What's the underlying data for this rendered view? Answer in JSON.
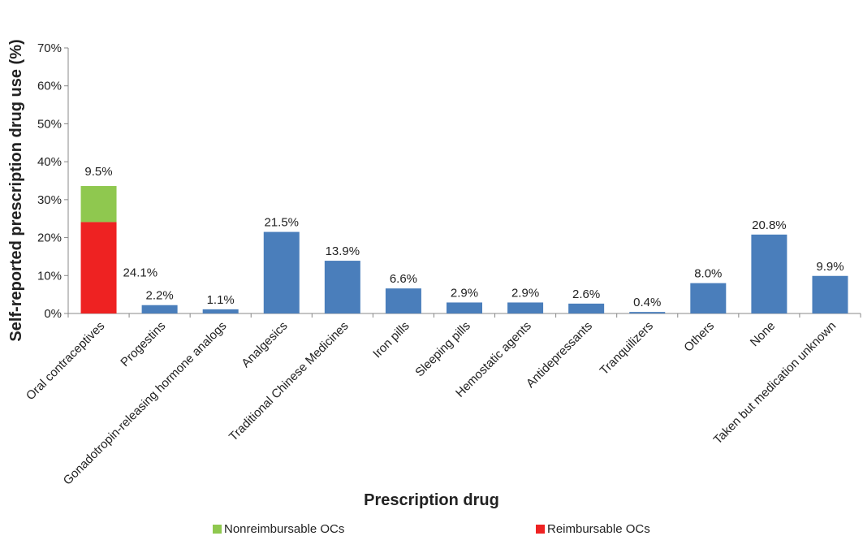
{
  "chart_data": {
    "type": "bar",
    "stacked": true,
    "xlabel": "Prescription drug",
    "ylabel": "Self-reported prescription drug use (%)",
    "ylim": [
      0,
      70
    ],
    "yticks": [
      "0%",
      "10%",
      "20%",
      "30%",
      "40%",
      "50%",
      "60%",
      "70%"
    ],
    "grid": false,
    "legend_position": "bottom",
    "categories": [
      "Oral contraceptives",
      "Progestins",
      "Gonadotropin-releasing hormone analogs",
      "Analgesics",
      "Traditional Chinese Medicines",
      "Iron pills",
      "Sleeping pills",
      "Hemostatic agents",
      "Antidepressants",
      "Tranquilizers",
      "Others",
      "None",
      "Taken but medication unknown"
    ],
    "series": [
      {
        "name": "",
        "color": "#4a7ebb",
        "values": [
          null,
          2.2,
          1.1,
          21.5,
          13.9,
          6.6,
          2.9,
          2.9,
          2.6,
          0.4,
          8.0,
          20.8,
          9.9
        ],
        "labels": [
          "",
          "2.2%",
          "1.1%",
          "21.5%",
          "13.9%",
          "6.6%",
          "2.9%",
          "2.9%",
          "2.6%",
          "0.4%",
          "8.0%",
          "20.8%",
          "9.9%"
        ]
      },
      {
        "name": "Reimbursable OCs",
        "color": "#ee2222",
        "values": [
          24.1,
          null,
          null,
          null,
          null,
          null,
          null,
          null,
          null,
          null,
          null,
          null,
          null
        ],
        "labels": [
          "24.1%",
          "",
          "",
          "",
          "",
          "",
          "",
          "",
          "",
          "",
          "",
          "",
          ""
        ]
      },
      {
        "name": "Nonreimbursable OCs",
        "color": "#8fc84f",
        "values": [
          9.5,
          null,
          null,
          null,
          null,
          null,
          null,
          null,
          null,
          null,
          null,
          null,
          null
        ],
        "labels": [
          "9.5%",
          "",
          "",
          "",
          "",
          "",
          "",
          "",
          "",
          "",
          "",
          "",
          ""
        ]
      }
    ]
  },
  "legend": [
    {
      "label": "Nonreimbursable OCs",
      "color": "#8fc84f"
    },
    {
      "label": "Reimbursable OCs",
      "color": "#ee2222"
    }
  ]
}
